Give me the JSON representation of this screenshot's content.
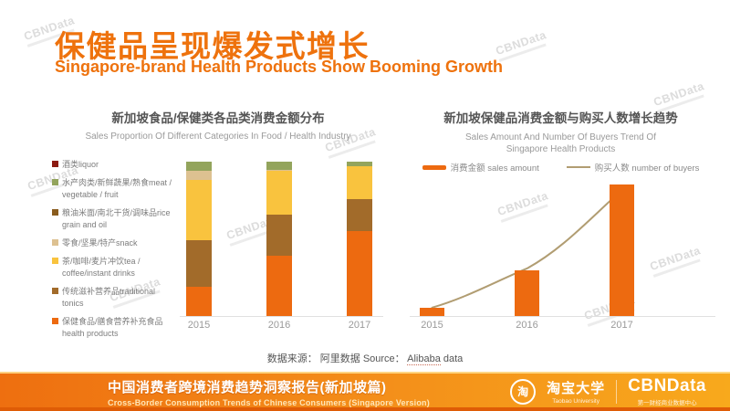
{
  "watermark": {
    "text": "CBNData"
  },
  "header": {
    "title_zh": "保健品呈现爆发式增长",
    "title_en": "Singapore-brand Health Products Show Booming Growth",
    "accent_color": "#ee720d"
  },
  "left_chart": {
    "title_zh": "新加坡食品/保健类各品类消费金额分布",
    "title_en": "Sales Proportion Of Different Categories In Food / Health Industry"
  },
  "right_chart": {
    "title_zh": "新加坡保健品消费金额与购买人数增长趋势",
    "title_en_line1": "Sales Amount And Number Of Buyers Trend Of",
    "title_en_line2": "Singapore Health Products"
  },
  "source": {
    "prefix": "数据来源： 阿里数据  Source： ",
    "link_text": "Alibaba",
    "suffix": " data"
  },
  "footer": {
    "report_title_zh": "中国消费者跨境消费趋势洞察报告(新加坡篇)",
    "report_title_en": "Cross-Border Consumption Trends of Chinese Consumers  (Singapore Version)",
    "taobao_logo_char": "淘",
    "taobao_name": "淘宝大学",
    "taobao_sub": "Taobao University",
    "cbndata_name": "CBNData",
    "cbndata_sub": "第一财经商业数据中心"
  },
  "chart_data": [
    {
      "type": "bar",
      "subtype": "stacked-100-percent",
      "title": "新加坡食品/保健类各品类消费金额分布",
      "subtitle": "Sales Proportion Of Different Categories In Food / Health Industry",
      "categories": [
        "2015",
        "2016",
        "2017"
      ],
      "unit": "% share of sales amount (estimated from bar heights; no value labels shown)",
      "ylim": [
        0,
        100
      ],
      "legend_position": "left",
      "series_stacked_bottom_to_top": true,
      "series": [
        {
          "name": "保健食品/膳食营养补充食品 health products",
          "color": "#ed6a10",
          "values": [
            19,
            39,
            55
          ]
        },
        {
          "name": "传统滋补营养品traditional tonics",
          "color": "#a26b2a",
          "values": [
            30,
            27,
            21
          ]
        },
        {
          "name": "茶/咖啡/麦片冲饮tea / coffee/instant drinks",
          "color": "#f9c33e",
          "values": [
            39,
            28,
            21
          ]
        },
        {
          "name": "零食/坚果/特产snack",
          "color": "#ddc191",
          "values": [
            6,
            1,
            0
          ]
        },
        {
          "name": "粮油米面/南北干货/调味品rice grain and oil",
          "color": "#8a5c1e",
          "values": [
            0,
            0,
            0
          ]
        },
        {
          "name": "水产肉类/新鲜蔬果/熟食meat / vegetable / fruit",
          "color": "#93a45c",
          "values": [
            6,
            5,
            3
          ]
        },
        {
          "name": "酒类liquor",
          "color": "#8c1b12",
          "values": [
            0,
            0,
            0
          ]
        }
      ]
    },
    {
      "type": "bar",
      "subtype": "combo-bar-line",
      "title": "新加坡保健品消费金额与购买人数增长趋势",
      "subtitle": "Sales Amount And Number Of Buyers Trend Of Singapore Health Products",
      "categories": [
        "2015",
        "2016",
        "2017"
      ],
      "unit": "relative index (no axis values shown)",
      "ylim": [
        0,
        100
      ],
      "legend_position": "top",
      "series": [
        {
          "name": "消费金额 sales amount",
          "type": "bar",
          "color": "#ed6a10",
          "values": [
            6,
            33,
            94
          ]
        },
        {
          "name": "购买人数 number of buyers",
          "type": "line",
          "color": "#b19d72",
          "values": [
            6,
            34,
            90
          ]
        }
      ]
    }
  ]
}
